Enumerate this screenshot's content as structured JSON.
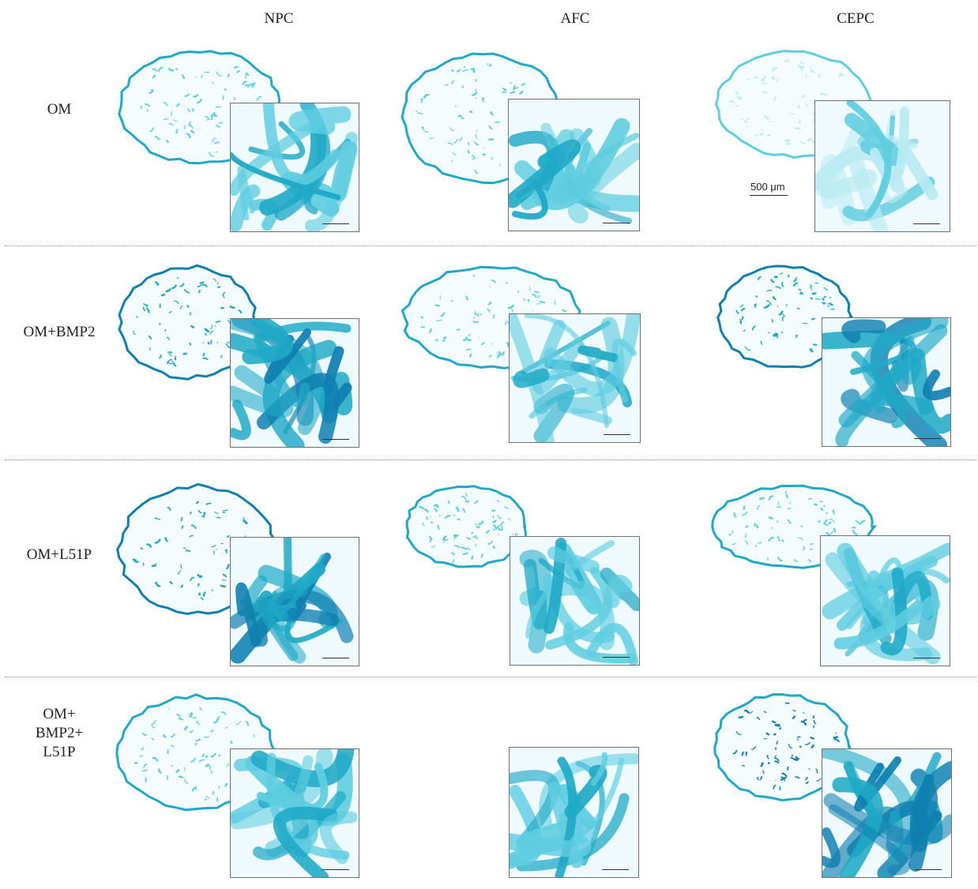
{
  "columns": [
    "NPC",
    "AFC",
    "CEPC"
  ],
  "rows": [
    "OM",
    "OM+BMP2",
    "OM+L51P",
    "OM+\nBMP2+\nL51P"
  ],
  "scale_bar_label": "500 μm",
  "colors": {
    "stain_light": "#b9ebf3",
    "stain_mid": "#5fcde0",
    "stain_dark": "#1fa9c6",
    "stain_deep": "#0f7fb0",
    "background": "#ffffff",
    "inset_border": "#6f6f6f",
    "divider": "#888888"
  },
  "panels": [
    {
      "column": "NPC",
      "row": "OM",
      "intensity": "medium",
      "section_visible": true
    },
    {
      "column": "AFC",
      "row": "OM",
      "intensity": "medium",
      "section_visible": true
    },
    {
      "column": "CEPC",
      "row": "OM",
      "intensity": "light",
      "section_visible": true
    },
    {
      "column": "NPC",
      "row": "OM+BMP2",
      "intensity": "dark",
      "section_visible": true
    },
    {
      "column": "AFC",
      "row": "OM+BMP2",
      "intensity": "medium",
      "section_visible": true
    },
    {
      "column": "CEPC",
      "row": "OM+BMP2",
      "intensity": "dark",
      "section_visible": true
    },
    {
      "column": "NPC",
      "row": "OM+L51P",
      "intensity": "dark",
      "section_visible": true
    },
    {
      "column": "AFC",
      "row": "OM+L51P",
      "intensity": "medium",
      "section_visible": true
    },
    {
      "column": "CEPC",
      "row": "OM+L51P",
      "intensity": "medium",
      "section_visible": true
    },
    {
      "column": "NPC",
      "row": "OM+\nBMP2+\nL51P",
      "intensity": "medium",
      "section_visible": true
    },
    {
      "column": "AFC",
      "row": "OM+\nBMP2+\nL51P",
      "intensity": "medium",
      "section_visible": false
    },
    {
      "column": "CEPC",
      "row": "OM+\nBMP2+\nL51P",
      "intensity": "deep",
      "section_visible": true
    }
  ]
}
